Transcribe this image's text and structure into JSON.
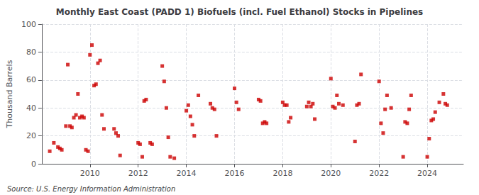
{
  "chart_data": {
    "type": "scatter",
    "title": "Monthly East Coast (PADD 1) Biofuels (incl. Fuel Ethanol) Stocks in Pipelines",
    "ylabel": "Thousand Barrels",
    "annotations": [
      "Source: U.S. Energy Information Administration"
    ],
    "color": "#cc0000",
    "marker": "square",
    "grid": true,
    "xlim": [
      2008.0,
      2025.5
    ],
    "xticks": [
      2010,
      2012,
      2014,
      2016,
      2018,
      2020,
      2022,
      2024
    ],
    "ylim": [
      0,
      100
    ],
    "yticks": [
      0,
      20,
      40,
      60,
      80,
      100
    ],
    "x": [
      2008.33,
      2008.5,
      2008.67,
      2008.75,
      2008.83,
      2009.0,
      2009.08,
      2009.17,
      2009.25,
      2009.33,
      2009.42,
      2009.5,
      2009.58,
      2009.67,
      2009.75,
      2009.83,
      2009.92,
      2010.0,
      2010.08,
      2010.17,
      2010.25,
      2010.33,
      2010.42,
      2010.5,
      2010.58,
      2011.0,
      2011.08,
      2011.17,
      2011.25,
      2012.0,
      2012.08,
      2012.17,
      2012.25,
      2012.33,
      2012.5,
      2012.58,
      2013.0,
      2013.08,
      2013.17,
      2013.25,
      2013.33,
      2013.5,
      2014.0,
      2014.08,
      2014.17,
      2014.25,
      2014.33,
      2014.5,
      2015.0,
      2015.08,
      2015.17,
      2015.25,
      2016.0,
      2016.08,
      2016.17,
      2017.0,
      2017.08,
      2017.17,
      2017.25,
      2017.33,
      2018.0,
      2018.08,
      2018.17,
      2018.25,
      2018.33,
      2019.0,
      2019.08,
      2019.17,
      2019.25,
      2019.33,
      2020.0,
      2020.08,
      2020.17,
      2020.25,
      2020.33,
      2020.5,
      2021.0,
      2021.08,
      2021.17,
      2021.25,
      2022.0,
      2022.08,
      2022.17,
      2022.25,
      2022.33,
      2022.5,
      2023.0,
      2023.08,
      2023.17,
      2023.25,
      2023.33,
      2024.0,
      2024.08,
      2024.17,
      2024.25,
      2024.33,
      2024.5,
      2024.67,
      2024.75,
      2024.83
    ],
    "values": [
      9,
      15,
      12,
      11,
      10,
      27,
      71,
      27,
      26,
      33,
      35,
      50,
      33,
      34,
      33,
      10,
      9,
      78,
      85,
      56,
      57,
      72,
      74,
      35,
      25,
      25,
      22,
      20,
      6,
      15,
      14,
      5,
      45,
      46,
      15,
      14,
      70,
      59,
      40,
      19,
      5,
      4,
      38,
      42,
      34,
      28,
      20,
      49,
      43,
      40,
      39,
      20,
      54,
      44,
      39,
      46,
      45,
      29,
      30,
      29,
      44,
      42,
      42,
      30,
      33,
      41,
      44,
      41,
      43,
      32,
      61,
      41,
      40,
      49,
      43,
      42,
      16,
      42,
      43,
      64,
      59,
      29,
      22,
      39,
      49,
      40,
      5,
      30,
      29,
      39,
      49,
      5,
      18,
      31,
      32,
      37,
      44,
      50,
      43,
      42
    ]
  }
}
